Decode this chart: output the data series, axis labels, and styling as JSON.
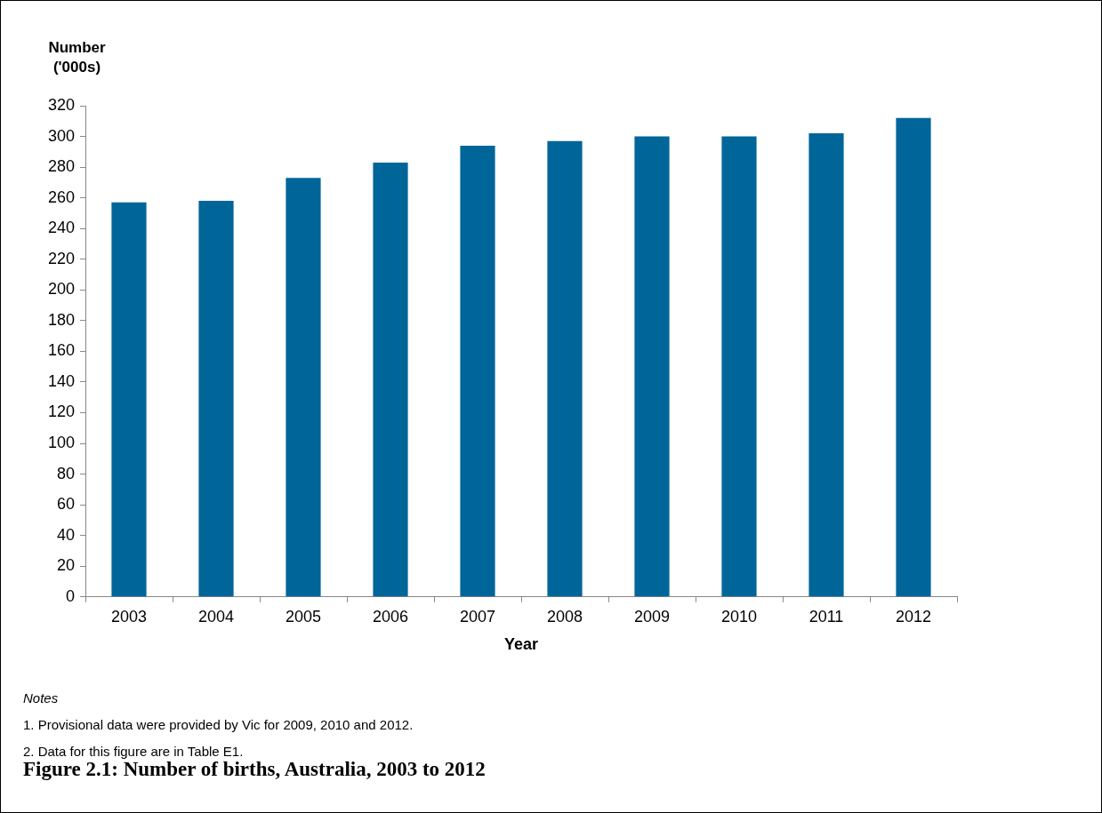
{
  "chart_data": {
    "type": "bar",
    "title": "Figure 2.1: Number of births, Australia, 2003 to 2012",
    "ylabel": "Number ('000s)",
    "xlabel": "Year",
    "categories": [
      "2003",
      "2004",
      "2005",
      "2006",
      "2007",
      "2008",
      "2009",
      "2010",
      "2011",
      "2012"
    ],
    "values": [
      257,
      258,
      273,
      283,
      294,
      297,
      300,
      300,
      302,
      312
    ],
    "color": "#006699",
    "ylim": [
      0,
      320
    ],
    "yticks": [
      0,
      20,
      40,
      60,
      80,
      100,
      120,
      140,
      160,
      180,
      200,
      220,
      240,
      260,
      280,
      300,
      320
    ],
    "annotations": [
      "Notes",
      "1. Provisional data were provided by Vic for 2009, 2010 and 2012.",
      "2. Data for this figure are in Table E1."
    ]
  }
}
